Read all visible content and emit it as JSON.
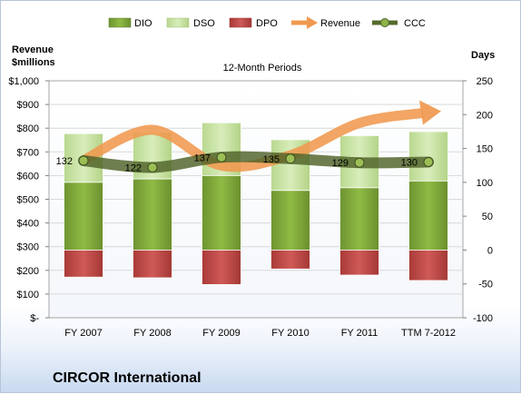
{
  "chart_data": {
    "type": "bar",
    "title": "12-Month Periods",
    "company": "CIRCOR International",
    "left_axis_title": [
      "Revenue",
      "$millions"
    ],
    "right_axis_title": "Days",
    "categories": [
      "FY 2007",
      "FY 2008",
      "FY 2009",
      "FY 2010",
      "FY 2011",
      "TTM 7-2012"
    ],
    "left_ticks": [
      "$-",
      "$100",
      "$200",
      "$300",
      "$400",
      "$500",
      "$600",
      "$700",
      "$800",
      "$900",
      "$1,000"
    ],
    "right_ticks": [
      "-100",
      "-50",
      "0",
      "50",
      "100",
      "150",
      "200",
      "250"
    ],
    "left_ylim": [
      0,
      1000
    ],
    "right_ylim": [
      -100,
      250
    ],
    "legend": [
      "DIO",
      "DSO",
      "DPO",
      "Revenue",
      "CCC"
    ],
    "series": [
      {
        "name": "DIO",
        "type": "stacked-bar",
        "axis": "right",
        "color": "#80a83a",
        "values": [
          100,
          105,
          110,
          88,
          92,
          102
        ]
      },
      {
        "name": "DSO",
        "type": "stacked-bar",
        "axis": "right",
        "color": "#c6e3a0",
        "values": [
          72,
          69,
          78,
          75,
          77,
          73
        ]
      },
      {
        "name": "DPO",
        "type": "bar-below",
        "axis": "right",
        "color": "#c0504d",
        "values": [
          -40,
          -41,
          -51,
          -28,
          -37,
          -45
        ]
      },
      {
        "name": "Revenue",
        "type": "arrow-line",
        "axis": "left",
        "color": "#f79646",
        "values": [
          665,
          793,
          642,
          686,
          822,
          868
        ]
      },
      {
        "name": "CCC",
        "type": "line",
        "axis": "right",
        "color": "#4f6228",
        "values": [
          132,
          122,
          137,
          135,
          129,
          130
        ]
      }
    ],
    "ccc_labels": [
      "132",
      "122",
      "137",
      "135",
      "129",
      "130"
    ],
    "grid": true
  }
}
